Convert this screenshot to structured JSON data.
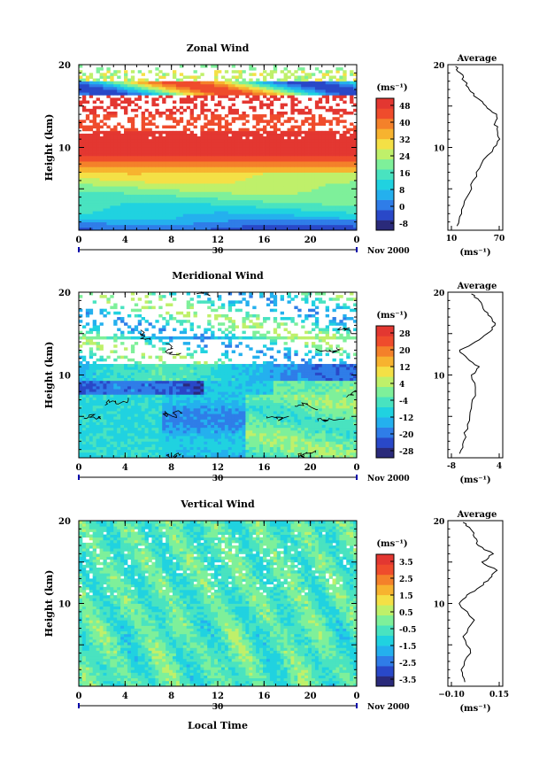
{
  "xlabel_bottom": "Local Time",
  "date_label": "Nov 2000",
  "date_day": "30",
  "xticks": [
    "0",
    "4",
    "8",
    "12",
    "16",
    "20",
    "0"
  ],
  "units": "(ms⁻¹)",
  "avg_title": "Average",
  "ylabel": "Height (km)",
  "colorbar_colors": [
    "#2a2a7a",
    "#2948c8",
    "#2f7de8",
    "#24b0ee",
    "#20d2e0",
    "#49e3c0",
    "#7ef09a",
    "#bff06a",
    "#f4e046",
    "#f7b32f",
    "#f4812a",
    "#ef4c2c",
    "#e33731"
  ],
  "chart_data": [
    {
      "type": "heatmap",
      "title": "Zonal Wind",
      "xlabel": "Local Time",
      "ylabel": "Height (km)",
      "ylim": [
        0,
        20
      ],
      "y_ticks": [
        "10",
        "20"
      ],
      "colorbar_ticks": [
        "48",
        "40",
        "32",
        "24",
        "16",
        "8",
        "0",
        "-8"
      ],
      "colorbar_range": [
        -12,
        52
      ],
      "profile": {
        "title": "Average",
        "x_ticks": [
          "10",
          "70"
        ],
        "xlim": [
          0,
          72
        ],
        "heights": [
          0.5,
          2,
          4,
          6,
          8,
          10,
          11,
          12,
          13,
          14,
          15,
          16,
          17,
          18,
          19,
          19.8
        ],
        "values": [
          12,
          18,
          25,
          33,
          44,
          60,
          68,
          65,
          62,
          64,
          50,
          38,
          28,
          22,
          16,
          10
        ]
      }
    },
    {
      "type": "heatmap",
      "title": "Meridional Wind",
      "xlabel": "Local Time",
      "ylabel": "Height (km)",
      "ylim": [
        0,
        20
      ],
      "y_ticks": [
        "10",
        "20"
      ],
      "colorbar_ticks": [
        "28",
        "20",
        "12",
        "4",
        "-4",
        "-12",
        "-20",
        "-28"
      ],
      "colorbar_range": [
        -30,
        30
      ],
      "profile": {
        "title": "Average",
        "x_ticks": [
          "-8",
          "4"
        ],
        "xlim": [
          -9,
          5
        ],
        "heights": [
          0.5,
          2,
          4,
          6,
          8,
          10,
          11,
          12,
          13,
          14,
          15,
          16,
          17,
          18,
          19,
          19.8
        ],
        "values": [
          -6,
          -5,
          -4,
          -3,
          -2,
          -3,
          -1,
          -4,
          -6,
          -2,
          1,
          3,
          2,
          0,
          -1,
          -3
        ]
      }
    },
    {
      "type": "heatmap",
      "title": "Vertical Wind",
      "xlabel": "Local Time",
      "ylabel": "Height (km)",
      "ylim": [
        0,
        20
      ],
      "y_ticks": [
        "10",
        "20"
      ],
      "colorbar_ticks": [
        "3.5",
        "2.5",
        "1.5",
        "0.5",
        "-0.5",
        "-1.5",
        "-2.5",
        "-3.5"
      ],
      "colorbar_range": [
        -4,
        4
      ],
      "profile": {
        "title": "Average",
        "x_ticks": [
          "−0.10",
          "0.15"
        ],
        "xlim": [
          -0.12,
          0.17
        ],
        "heights": [
          0.5,
          2,
          4,
          6,
          8,
          10,
          11,
          12,
          13,
          14,
          15,
          16,
          17,
          18,
          19,
          19.8
        ],
        "values": [
          -0.03,
          -0.05,
          0.0,
          -0.04,
          0.02,
          -0.06,
          -0.02,
          0.05,
          0.1,
          0.14,
          0.06,
          0.12,
          0.04,
          0.02,
          0.0,
          -0.04
        ]
      }
    }
  ]
}
